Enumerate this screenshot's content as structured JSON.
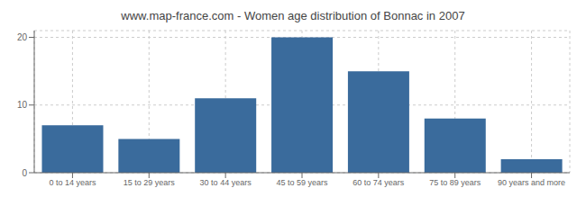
{
  "chart_data": {
    "type": "bar",
    "title": "www.map-france.com - Women age distribution of Bonnac in 2007",
    "categories": [
      "0 to 14 years",
      "15 to 29 years",
      "30 to 44 years",
      "45 to 59 years",
      "60 to 74 years",
      "75 to 89 years",
      "90 years and more"
    ],
    "values": [
      7,
      5,
      11,
      20,
      15,
      8,
      2
    ],
    "color": "#3a6b9c",
    "ylim": [
      0,
      21
    ],
    "yticks": [
      0,
      10,
      20
    ],
    "grid": true
  }
}
